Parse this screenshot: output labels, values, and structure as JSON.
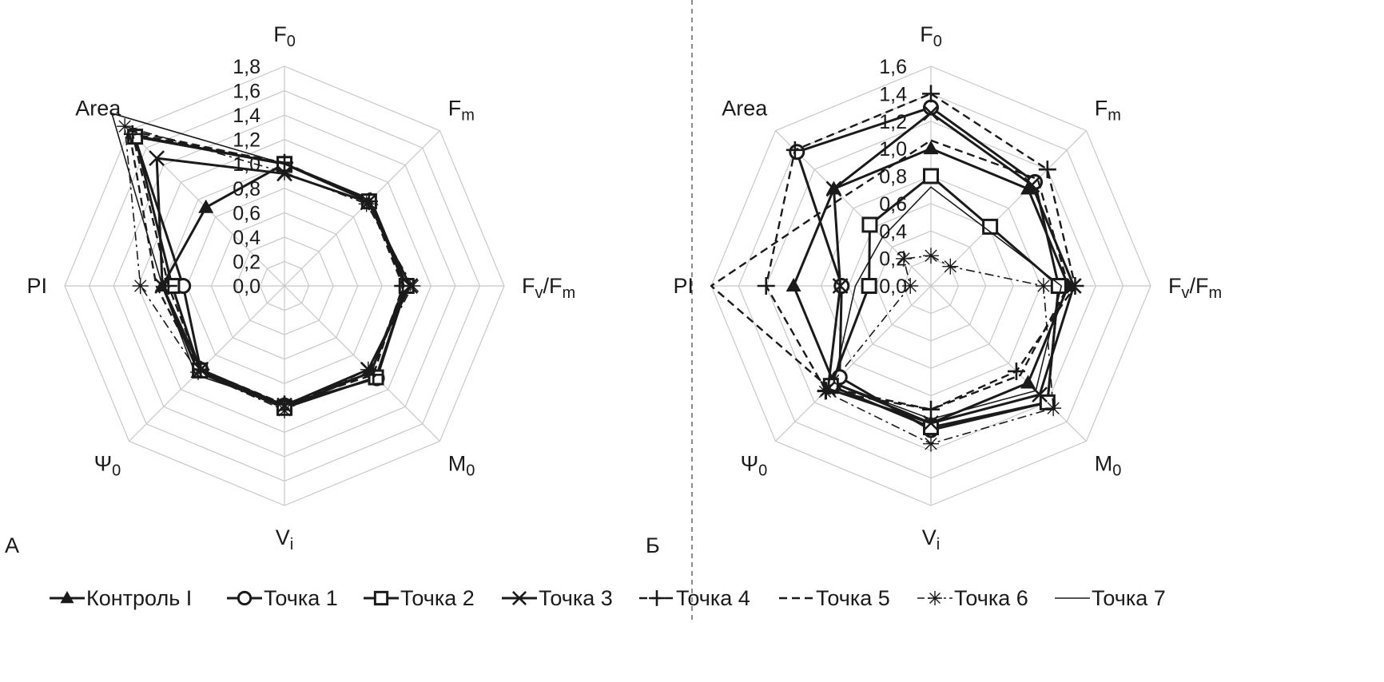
{
  "chart_data": [
    {
      "type": "radar",
      "panel_label": "А",
      "axes": [
        "F<sub>0</sub>",
        "F<sub>m</sub>",
        "F<sub>v</sub>/F<sub>m</sub>",
        "M<sub>0</sub>",
        "V<sub>i</sub>",
        "Ψ<sub>0</sub>",
        "PI",
        "Area"
      ],
      "ticks": [
        "0,0",
        "0,2",
        "0,4",
        "0,6",
        "0,8",
        "1,0",
        "1,2",
        "1,4",
        "1,6",
        "1,8"
      ],
      "rmax": 1.8,
      "grid": true,
      "series": [
        {
          "name": "Контроль I",
          "values": [
            1.0,
            1.0,
            1.0,
            1.0,
            1.0,
            1.0,
            1.0,
            0.91
          ]
        },
        {
          "name": "Точка 1",
          "values": [
            1.0,
            0.98,
            1.0,
            1.07,
            0.98,
            0.97,
            0.83,
            1.74
          ]
        },
        {
          "name": "Точка 2",
          "values": [
            1.0,
            0.98,
            1.0,
            1.06,
            1.0,
            0.98,
            0.92,
            1.73
          ]
        },
        {
          "name": "Точка 3",
          "values": [
            0.92,
            0.97,
            1.03,
            0.97,
            0.98,
            0.97,
            1.0,
            1.48
          ]
        },
        {
          "name": "Точка 4",
          "values": [
            1.01,
            0.98,
            0.97,
            1.03,
            0.97,
            0.97,
            0.95,
            1.76
          ]
        },
        {
          "name": "Точка 5",
          "values": [
            1.0,
            1.0,
            0.98,
            1.0,
            0.98,
            0.98,
            1.05,
            1.8
          ]
        },
        {
          "name": "Точка 6",
          "values": [
            0.93,
            0.95,
            1.05,
            0.97,
            1.02,
            1.0,
            1.18,
            1.85
          ]
        },
        {
          "name": "Точка 7",
          "values": [
            1.0,
            0.99,
            0.98,
            1.0,
            0.97,
            1.03,
            1.0,
            2.0
          ]
        }
      ]
    },
    {
      "type": "radar",
      "panel_label": "Б",
      "axes": [
        "F<sub>0</sub>",
        "F<sub>m</sub>",
        "F<sub>v</sub>/F<sub>m</sub>",
        "M<sub>0</sub>",
        "V<sub>i</sub>",
        "Ψ<sub>0</sub>",
        "PI",
        "Area"
      ],
      "ticks": [
        "0,0",
        "0,2",
        "0,4",
        "0,6",
        "0,8",
        "1,0",
        "1,2",
        "1,4",
        "1,6"
      ],
      "rmax": 1.6,
      "grid": true,
      "series": [
        {
          "name": "Контроль I",
          "values": [
            1.0,
            1.0,
            1.0,
            1.0,
            1.0,
            1.0,
            1.0,
            1.0
          ]
        },
        {
          "name": "Точка 1",
          "values": [
            1.3,
            1.07,
            0.93,
            1.2,
            1.05,
            0.94,
            0.65,
            1.38
          ]
        },
        {
          "name": "Точка 2",
          "values": [
            0.8,
            0.61,
            0.93,
            1.2,
            1.03,
            1.03,
            0.45,
            0.63
          ]
        },
        {
          "name": "Точка 3",
          "values": [
            1.26,
            1.04,
            1.04,
            1.12,
            1.0,
            1.06,
            0.66,
            1.0
          ]
        },
        {
          "name": "Точка 4",
          "values": [
            1.4,
            1.2,
            1.05,
            0.88,
            0.9,
            1.08,
            1.2,
            1.4
          ]
        },
        {
          "name": "Точка 5",
          "values": [
            1.06,
            1.1,
            1.0,
            0.92,
            0.9,
            1.05,
            1.6,
            0.91
          ]
        },
        {
          "name": "Точка 6",
          "values": [
            0.22,
            0.2,
            0.82,
            1.26,
            1.15,
            1.09,
            0.15,
            0.28
          ]
        },
        {
          "name": "Точка 7",
          "values": [
            0.72,
            0.58,
            0.95,
            1.08,
            0.97,
            1.0,
            0.55,
            0.5
          ]
        }
      ]
    }
  ],
  "legend": [
    {
      "name": "Контроль I",
      "marker": "triangle",
      "dash": "solid",
      "width": 3
    },
    {
      "name": "Точка 1",
      "marker": "circle",
      "dash": "solid",
      "width": 3
    },
    {
      "name": "Точка 2",
      "marker": "square",
      "dash": "solid",
      "width": 3
    },
    {
      "name": "Точка 3",
      "marker": "x",
      "dash": "solid",
      "width": 3
    },
    {
      "name": "Точка 4",
      "marker": "plus",
      "dash": "dash",
      "width": 2.4
    },
    {
      "name": "Точка 5",
      "marker": "none",
      "dash": "dash",
      "width": 2.4
    },
    {
      "name": "Точка 6",
      "marker": "star",
      "dash": "dashdot",
      "width": 1.6
    },
    {
      "name": "Точка 7",
      "marker": "none",
      "dash": "solid",
      "width": 1.6
    }
  ],
  "colors": {
    "grid": "#c8c8c8",
    "series": "#1a1a1a",
    "divider": "#666666"
  }
}
